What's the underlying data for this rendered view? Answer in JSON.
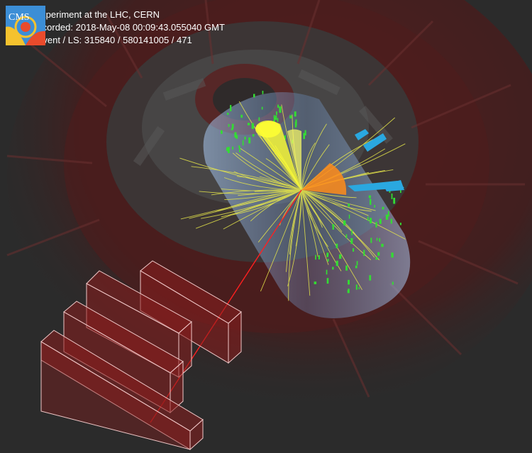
{
  "header": {
    "logo_text": "CMS",
    "experiment": "CMS Experiment at the LHC, CERN",
    "recorded": "Data recorded: 2018-May-08 00:09:43.055040 GMT",
    "run_event": "Run / Event / LS: 315840 / 580141005 / 471"
  },
  "colors": {
    "background": "#2b2b2b",
    "calorimeter_red": "#7a1f1f",
    "tracker_blue": "#8fb6e6",
    "jet_yellow": "#ffff33",
    "jet_orange": "#ff8c1a",
    "muon_track_red": "#ff2020",
    "hcal_blue": "#2aa8e0",
    "ecal_green": "#33dd33"
  },
  "event": {
    "yellow_jet_count": 1,
    "orange_jet_count": 1,
    "muon_chambers": 4
  }
}
